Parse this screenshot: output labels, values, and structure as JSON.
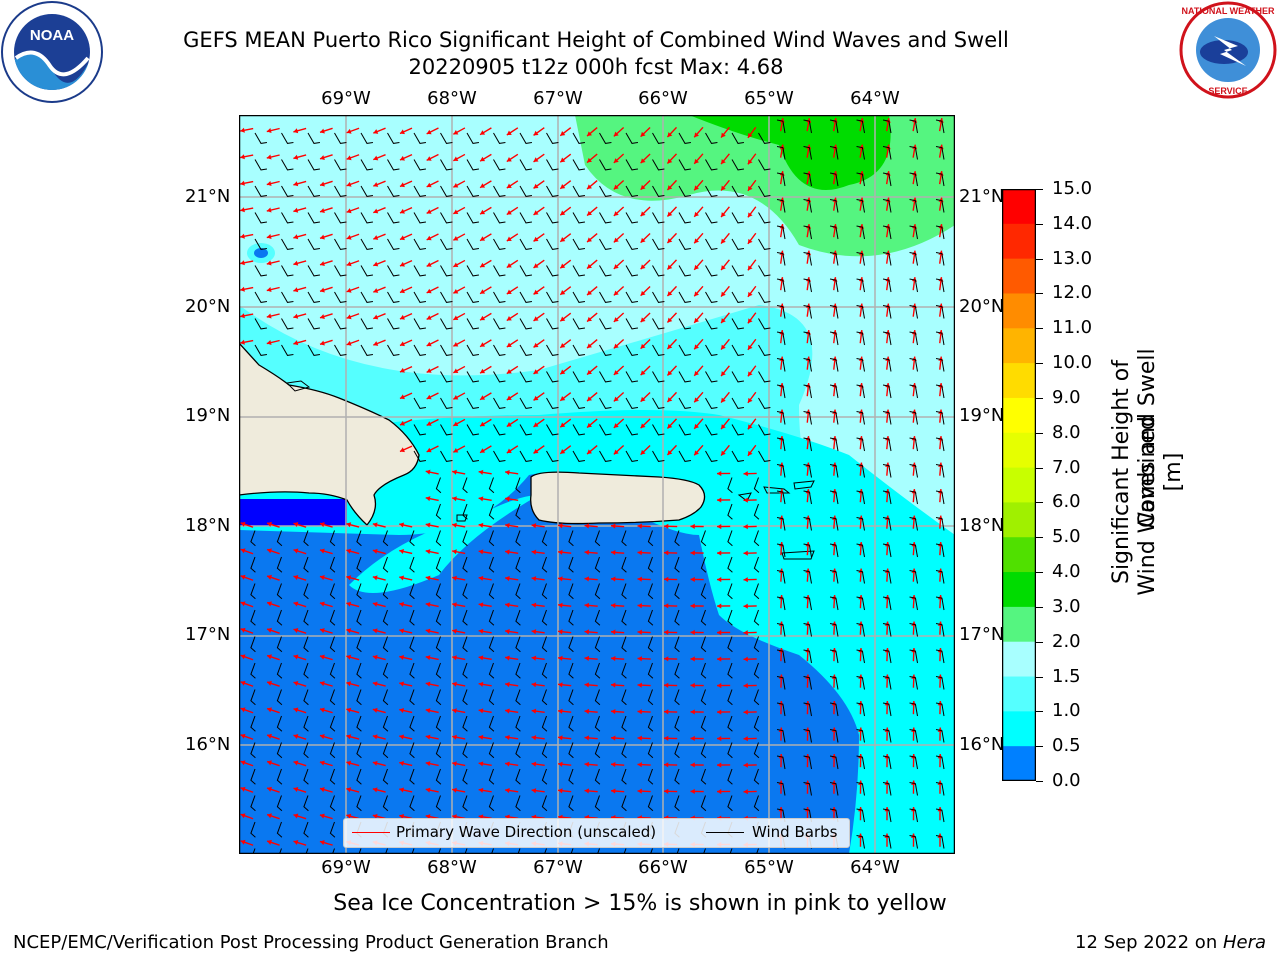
{
  "title": {
    "line1": "GEFS MEAN Puerto Rico Significant Height of Combined Wind Waves and Swell",
    "line2": "20220905 t12z 000h fcst   Max: 4.68"
  },
  "logos": {
    "noaa": {
      "icon": "noaa-logo",
      "text": "NOAA",
      "ring_text": "NATIONAL OCEANIC AND ATMOSPHERIC ADMINISTRATION · U.S. DEPARTMENT OF COMMERCE"
    },
    "nws": {
      "icon": "nws-logo",
      "ring_text": "NATIONAL WEATHER SERVICE"
    }
  },
  "map": {
    "lon_labels": [
      "69°W",
      "68°W",
      "67°W",
      "66°W",
      "65°W",
      "64°W"
    ],
    "lat_labels": [
      "21°N",
      "20°N",
      "19°N",
      "18°N",
      "17°N",
      "16°N"
    ],
    "lon_range": [
      -70,
      -63.3
    ],
    "lat_range": [
      15,
      21.75
    ],
    "gridlines": true,
    "land_color": "#efebdc",
    "coast_color": "#000000"
  },
  "legend": {
    "wave_label": "Primary Wave Direction (unscaled)",
    "barb_label": "Wind Barbs",
    "wave_color": "#ff0000",
    "barb_color": "#000000"
  },
  "colorbar": {
    "label_line1": "Significant Height of Combined",
    "label_line2": "Wind Waves and Swell [m]",
    "ticks": [
      "15.0",
      "14.0",
      "13.0",
      "12.0",
      "11.0",
      "10.0",
      "9.0",
      "8.0",
      "7.0",
      "6.0",
      "5.0",
      "4.0",
      "3.0",
      "2.0",
      "1.5",
      "1.0",
      "0.5",
      "0.0"
    ],
    "colors": [
      "#ff0000",
      "#ff2800",
      "#ff5a00",
      "#ff8c00",
      "#ffb400",
      "#ffdc00",
      "#ffff00",
      "#e6ff00",
      "#c8ff00",
      "#a0f000",
      "#50e000",
      "#00dc00",
      "#55f580",
      "#a8ffff",
      "#55ffff",
      "#00ffff",
      "#0080ff",
      "#0000ff"
    ]
  },
  "caption": "Sea Ice Concentration > 15% is shown in pink to yellow",
  "footer": {
    "left": "NCEP/EMC/Verification Post Processing Product Generation Branch",
    "right_prefix": "12 Sep 2022 on ",
    "right_host": "Hera"
  }
}
